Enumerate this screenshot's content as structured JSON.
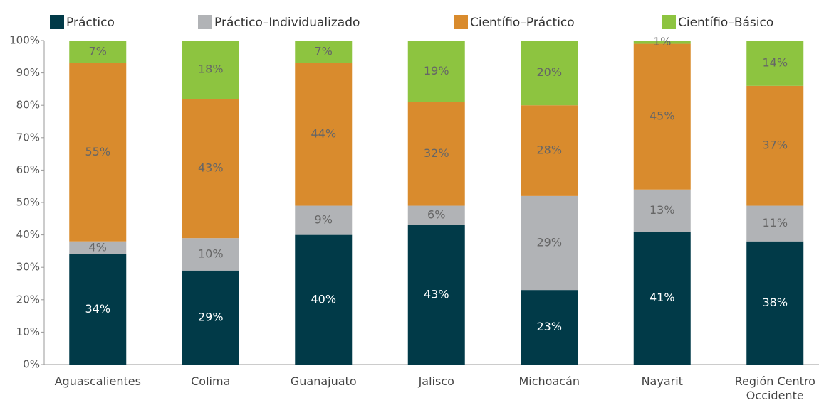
{
  "chart_data": {
    "type": "stacked_bar",
    "categories": [
      "Aguascalientes",
      "Colima",
      "Guanajuato",
      "Jalisco",
      "Michoacán",
      "Nayarit",
      "Región Centro Occidente"
    ],
    "series": [
      {
        "name": "Práctico",
        "color": "#013a48",
        "values": [
          34,
          29,
          40,
          43,
          23,
          41,
          38
        ],
        "value_labels": [
          "34%",
          "29%",
          "40%",
          "43%",
          "23%",
          "41%",
          "38%"
        ]
      },
      {
        "name": "Práctico–Individualizado",
        "color": "#b1b3b6",
        "values": [
          4,
          10,
          9,
          6,
          29,
          13,
          11
        ],
        "value_labels": [
          "4%",
          "10%",
          "9%",
          "6%",
          "29%",
          "13%",
          "11%"
        ]
      },
      {
        "name": "Científio–Práctico",
        "color": "#d98b2d",
        "values": [
          55,
          43,
          44,
          32,
          28,
          45,
          37
        ],
        "value_labels": [
          "55%",
          "43%",
          "44%",
          "32%",
          "28%",
          "45%",
          "37%"
        ]
      },
      {
        "name": "Científio–Básico",
        "color": "#8dc440",
        "values": [
          7,
          18,
          7,
          19,
          20,
          1,
          14
        ],
        "value_labels": [
          "7%",
          "18%",
          "7%",
          "19%",
          "20%",
          "1%",
          "14%"
        ]
      }
    ],
    "ylim": [
      0,
      100
    ],
    "yticks": [
      {
        "value": 0,
        "label": "0%"
      },
      {
        "value": 10,
        "label": "10%"
      },
      {
        "value": 20,
        "label": "20%"
      },
      {
        "value": 30,
        "label": "30%"
      },
      {
        "value": 40,
        "label": "40%"
      },
      {
        "value": 50,
        "label": "50%"
      },
      {
        "value": 60,
        "label": "60%"
      },
      {
        "value": 70,
        "label": "70%"
      },
      {
        "value": 80,
        "label": "80%"
      },
      {
        "value": 90,
        "label": "90%"
      },
      {
        "value": 100,
        "label": "100%"
      }
    ],
    "legend": "top"
  }
}
